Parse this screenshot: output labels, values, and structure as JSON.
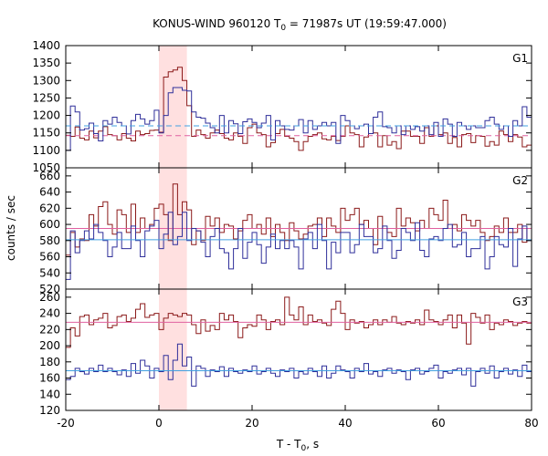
{
  "title_main": "KONUS-WIND 960120 T",
  "title_sub": "0",
  "title_rest": " = 71987s UT (19:59:47.000)",
  "ylabel": "counts / sec",
  "xlabel_main": "T - T",
  "xlabel_sub": "0",
  "xlabel_rest": ", s",
  "colors": {
    "red": "#8b1a1a",
    "blue": "#2f2f9a",
    "pink_bg": "#ffe0e0",
    "bg_line_red": "#e060a0",
    "bg_line_blue": "#40a0e0"
  },
  "chart_data": {
    "type": "line",
    "x_range": [
      -20,
      80
    ],
    "x_ticks": [
      -20,
      0,
      20,
      40,
      60,
      80
    ],
    "highlight_interval": [
      0,
      6
    ],
    "bin_width": 1.0,
    "panels": [
      {
        "label": "G1",
        "ylim": [
          1050,
          1400
        ],
        "yticks": [
          1050,
          1100,
          1150,
          1200,
          1250,
          1300,
          1350,
          1400
        ],
        "series": [
          {
            "color": "red",
            "values": [
              1143,
              1140,
              1167,
              1135,
              1130,
              1155,
              1136,
              1155,
              1168,
              1145,
              1142,
              1130,
              1148,
              1135,
              1127,
              1155,
              1145,
              1148,
              1157,
              1158,
              1152,
              1310,
              1325,
              1330,
              1338,
              1300,
              1228,
              1140,
              1158,
              1145,
              1135,
              1150,
              1158,
              1148,
              1135,
              1130,
              1150,
              1140,
              1120,
              1165,
              1175,
              1150,
              1145,
              1110,
              1122,
              1148,
              1160,
              1140,
              1135,
              1125,
              1100,
              1125,
              1140,
              1145,
              1150,
              1133,
              1130,
              1140,
              1128,
              1140,
              1170,
              1150,
              1145,
              1110,
              1138,
              1170,
              1150,
              1110,
              1142,
              1115,
              1125,
              1105,
              1155,
              1155,
              1140,
              1140,
              1120,
              1165,
              1140,
              1170,
              1145,
              1150,
              1120,
              1137,
              1110,
              1145,
              1148,
              1122,
              1142,
              1140,
              1112,
              1125,
              1115,
              1155,
              1145,
              1125,
              1145,
              1138,
              1110,
              1115
            ],
            "background": 1142
          },
          {
            "color": "blue",
            "values": [
              1100,
              1227,
              1210,
              1158,
              1162,
              1178,
              1148,
              1127,
              1185,
              1175,
              1195,
              1180,
              1170,
              1147,
              1185,
              1203,
              1190,
              1175,
              1185,
              1215,
              1150,
              1200,
              1265,
              1280,
              1280,
              1272,
              1270,
              1210,
              1195,
              1192,
              1178,
              1165,
              1150,
              1200,
              1150,
              1185,
              1176,
              1148,
              1182,
              1190,
              1180,
              1165,
              1178,
              1200,
              1130,
              1185,
              1170,
              1160,
              1158,
              1170,
              1188,
              1150,
              1185,
              1160,
              1170,
              1180,
              1170,
              1180,
              1120,
              1200,
              1185,
              1170,
              1162,
              1170,
              1175,
              1148,
              1195,
              1210,
              1168,
              1165,
              1150,
              1170,
              1145,
              1170,
              1160,
              1168,
              1155,
              1170,
              1145,
              1180,
              1140,
              1190,
              1175,
              1140,
              1180,
              1170,
              1160,
              1170,
              1165,
              1165,
              1185,
              1195,
              1175,
              1160,
              1170,
              1140,
              1185,
              1170,
              1225,
              1195
            ],
            "background": 1170
          }
        ]
      },
      {
        "label": "G2",
        "ylim": [
          520,
          670
        ],
        "yticks": [
          520,
          540,
          560,
          580,
          600,
          620,
          640,
          660
        ],
        "series": [
          {
            "color": "red",
            "values": [
              562,
              590,
              572,
              582,
              580,
              612,
              598,
              622,
              628,
              600,
              588,
              618,
              612,
              590,
              625,
              590,
              608,
              595,
              600,
              620,
              625,
              612,
              580,
              650,
              612,
              628,
              618,
              575,
              592,
              580,
              610,
              598,
              608,
              590,
              600,
              598,
              582,
              592,
              605,
              612,
              595,
              600,
              588,
              608,
              585,
              600,
              590,
              580,
              602,
              592,
              582,
              588,
              598,
              600,
              608,
              585,
              608,
              598,
              590,
              620,
              605,
              612,
              620,
              600,
              605,
              595,
              575,
              610,
              595,
              590,
              585,
              620,
              598,
              608,
              602,
              592,
              605,
              595,
              620,
              612,
              605,
              630,
              595,
              600,
              592,
              612,
              605,
              598,
              605,
              590,
              580,
              585,
              598,
              590,
              608,
              590,
              590,
              600,
              578,
              595
            ],
            "background": 595
          },
          {
            "color": "blue",
            "values": [
              532,
              592,
              565,
              580,
              592,
              582,
              600,
              590,
              580,
              560,
              572,
              590,
              570,
              570,
              598,
              580,
              560,
              592,
              598,
              605,
              570,
              588,
              615,
              575,
              585,
              615,
              580,
              595,
              592,
              578,
              560,
              585,
              595,
              570,
              565,
              545,
              570,
              595,
              558,
              578,
              590,
              575,
              552,
              572,
              588,
              570,
              580,
              570,
              580,
              572,
              545,
              582,
              590,
              570,
              600,
              580,
              545,
              578,
              565,
              590,
              590,
              565,
              575,
              600,
              585,
              585,
              565,
              570,
              598,
              580,
              558,
              568,
              595,
              590,
              580,
              602,
              568,
              560,
              582,
              585,
              580,
              595,
              600,
              572,
              575,
              590,
              560,
              570,
              570,
              585,
              545,
              560,
              585,
              575,
              572,
              595,
              548,
              582,
              598,
              580
            ],
            "background": 581
          }
        ]
      },
      {
        "label": "G3",
        "ylim": [
          120,
          270
        ],
        "yticks": [
          120,
          140,
          160,
          180,
          200,
          220,
          240,
          260
        ],
        "series": [
          {
            "color": "red",
            "values": [
              198,
              222,
              212,
              236,
              238,
              226,
              232,
              234,
              240,
              222,
              225,
              236,
              238,
              230,
              234,
              245,
              252,
              235,
              238,
              240,
              220,
              234,
              240,
              238,
              236,
              240,
              238,
              226,
              215,
              232,
              218,
              225,
              220,
              240,
              232,
              238,
              230,
              210,
              222,
              226,
              224,
              238,
              232,
              220,
              230,
              232,
              226,
              260,
              238,
              232,
              248,
              226,
              238,
              230,
              232,
              228,
              225,
              245,
              255,
              240,
              220,
              232,
              228,
              230,
              222,
              226,
              232,
              226,
              232,
              229,
              236,
              228,
              226,
              230,
              228,
              232,
              226,
              244,
              232,
              230,
              226,
              232,
              238,
              222,
              238,
              228,
              202,
              240,
              235,
              228,
              238,
              220,
              228,
              226,
              232,
              230,
              225,
              228,
              230,
              228
            ],
            "background": 229
          },
          {
            "color": "blue",
            "values": [
              158,
              162,
              172,
              168,
              165,
              172,
              168,
              176,
              168,
              172,
              168,
              164,
              170,
              162,
              178,
              166,
              182,
              175,
              160,
              172,
              168,
              188,
              158,
              182,
              202,
              175,
              186,
              150,
              175,
              172,
              162,
              170,
              168,
              174,
              162,
              172,
              168,
              166,
              170,
              168,
              175,
              165,
              168,
              172,
              166,
              162,
              170,
              168,
              172,
              160,
              168,
              165,
              172,
              168,
              162,
              175,
              160,
              166,
              175,
              170,
              168,
              160,
              172,
              168,
              178,
              165,
              168,
              162,
              170,
              172,
              166,
              170,
              168,
              158,
              170,
              172,
              165,
              168,
              172,
              176,
              160,
              168,
              166,
              170,
              172,
              164,
              172,
              150,
              168,
              172,
              166,
              175,
              160,
              168,
              172,
              165,
              170,
              162,
              176,
              168
            ],
            "background": 169
          }
        ]
      }
    ]
  }
}
